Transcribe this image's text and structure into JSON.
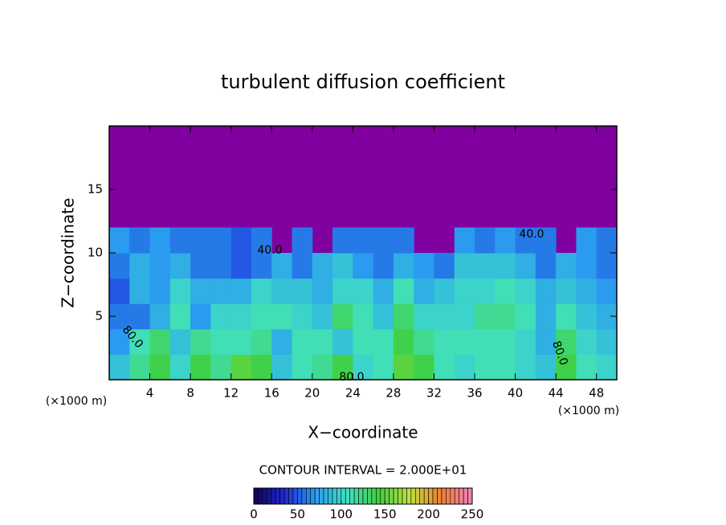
{
  "chart_data": {
    "type": "contour",
    "title": "turbulent diffusion coefficient",
    "xlabel": "X−coordinate",
    "ylabel": "Z−coordinate",
    "x_unit_left": "(×1000 m)",
    "x_unit_right": "(×1000 m)",
    "contour_interval": "CONTOUR INTERVAL = 2.000E+01",
    "contour_labels": [
      "80.0",
      "80.0",
      "80.0",
      "40.0",
      "40.0"
    ],
    "xlim": [
      0,
      50
    ],
    "ylim": [
      0,
      20
    ],
    "xticks": [
      4,
      8,
      12,
      16,
      20,
      24,
      28,
      32,
      36,
      40,
      44,
      48
    ],
    "yticks": [
      5,
      10,
      15
    ],
    "background_color": "#8000a0",
    "colormap": [
      "#140050",
      "#1e2ad8",
      "#2aa0f0",
      "#40e0c0",
      "#40d040",
      "#c0e040",
      "#f08030",
      "#f080c0"
    ],
    "clim": [
      0,
      250
    ],
    "cticks": [
      0,
      50,
      100,
      150,
      200,
      250
    ],
    "z": [
      [
        90,
        120,
        140,
        100,
        140,
        120,
        150,
        140,
        90,
        110,
        120,
        140,
        100,
        110,
        150,
        140,
        110,
        100,
        110,
        110,
        100,
        90,
        140,
        110,
        100
      ],
      [
        70,
        110,
        130,
        90,
        120,
        110,
        110,
        120,
        80,
        110,
        110,
        90,
        110,
        110,
        140,
        120,
        110,
        110,
        110,
        110,
        100,
        80,
        130,
        100,
        90
      ],
      [
        60,
        60,
        80,
        110,
        70,
        100,
        100,
        110,
        110,
        100,
        90,
        130,
        110,
        90,
        130,
        100,
        100,
        100,
        120,
        120,
        110,
        80,
        110,
        90,
        80
      ],
      [
        50,
        80,
        70,
        100,
        80,
        80,
        80,
        100,
        90,
        90,
        80,
        100,
        100,
        80,
        110,
        80,
        90,
        100,
        100,
        110,
        100,
        80,
        90,
        80,
        70
      ],
      [
        60,
        80,
        70,
        80,
        60,
        60,
        50,
        60,
        80,
        60,
        80,
        90,
        70,
        60,
        80,
        70,
        60,
        90,
        90,
        90,
        80,
        60,
        80,
        70,
        60
      ],
      [
        70,
        60,
        70,
        60,
        60,
        60,
        50,
        60,
        null,
        60,
        null,
        60,
        60,
        60,
        60,
        null,
        null,
        70,
        60,
        70,
        60,
        60,
        null,
        70,
        60
      ],
      [
        null,
        null,
        null,
        null,
        null,
        null,
        null,
        null,
        null,
        null,
        null,
        null,
        null,
        null,
        null,
        null,
        null,
        null,
        null,
        null,
        null,
        null,
        null,
        null,
        null
      ],
      [
        null,
        null,
        null,
        null,
        null,
        null,
        null,
        null,
        null,
        null,
        null,
        null,
        null,
        null,
        null,
        null,
        null,
        null,
        null,
        null,
        null,
        null,
        null,
        null,
        null
      ],
      [
        null,
        null,
        null,
        null,
        null,
        null,
        null,
        null,
        null,
        null,
        null,
        null,
        null,
        null,
        null,
        null,
        null,
        null,
        null,
        null,
        null,
        null,
        null,
        null,
        null
      ],
      [
        null,
        null,
        null,
        null,
        null,
        null,
        null,
        null,
        null,
        null,
        null,
        null,
        null,
        null,
        null,
        null,
        null,
        null,
        null,
        null,
        null,
        null,
        null,
        null,
        null
      ]
    ]
  }
}
